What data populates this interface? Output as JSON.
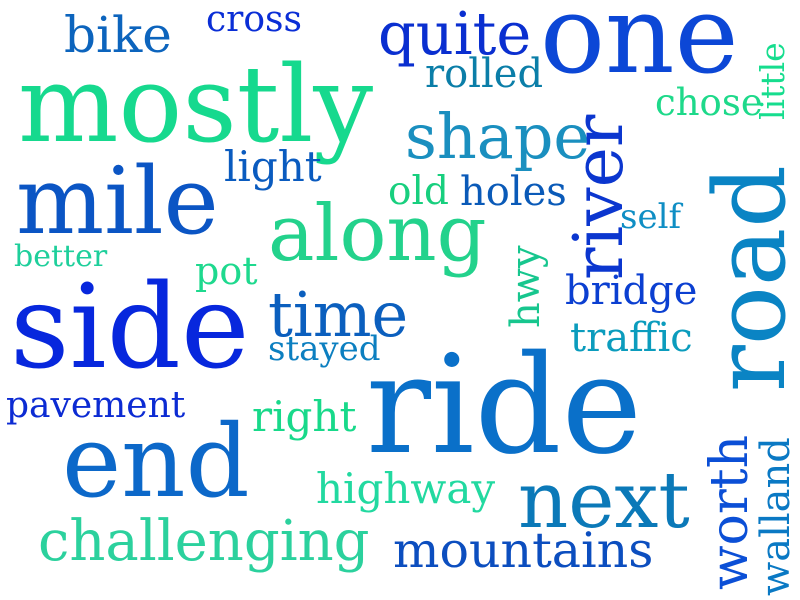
{
  "words": [
    {
      "id": "ride",
      "text": "ride",
      "color": "#0a70c9",
      "rotated": false
    },
    {
      "id": "one",
      "text": "one",
      "color": "#0c47d6",
      "rotated": false
    },
    {
      "id": "side",
      "text": "side",
      "color": "#0727dd",
      "rotated": false
    },
    {
      "id": "mostly",
      "text": "mostly",
      "color": "#16d98e",
      "rotated": false
    },
    {
      "id": "road",
      "text": "road",
      "color": "#0a84c4",
      "rotated": true
    },
    {
      "id": "mile",
      "text": "mile",
      "color": "#0b55c4",
      "rotated": false
    },
    {
      "id": "along",
      "text": "along",
      "color": "#23d28c",
      "rotated": false
    },
    {
      "id": "end",
      "text": "end",
      "color": "#0c68c9",
      "rotated": false
    },
    {
      "id": "river",
      "text": "river",
      "color": "#0b36cf",
      "rotated": true
    },
    {
      "id": "next",
      "text": "next",
      "color": "#0b79b8",
      "rotated": false
    },
    {
      "id": "shape",
      "text": "shape",
      "color": "#1a8fbf",
      "rotated": false
    },
    {
      "id": "time",
      "text": "time",
      "color": "#0b5fbe",
      "rotated": false
    },
    {
      "id": "challenging",
      "text": "challenging",
      "color": "#2bd19d",
      "rotated": false
    },
    {
      "id": "mountains",
      "text": "mountains",
      "color": "#0c4ebf",
      "rotated": false
    },
    {
      "id": "worth",
      "text": "worth",
      "color": "#0b4fd6",
      "rotated": true
    },
    {
      "id": "quite",
      "text": "quite",
      "color": "#0a2fd0",
      "rotated": false
    },
    {
      "id": "bike",
      "text": "bike",
      "color": "#0c64bd",
      "rotated": false
    },
    {
      "id": "pavement",
      "text": "pavement",
      "color": "#0c2bd3",
      "rotated": false
    },
    {
      "id": "highway",
      "text": "highway",
      "color": "#22d9a0",
      "rotated": false
    },
    {
      "id": "bridge",
      "text": "bridge",
      "color": "#0b3fd1",
      "rotated": false
    },
    {
      "id": "traffic",
      "text": "traffic",
      "color": "#0b9cbd",
      "rotated": false
    },
    {
      "id": "walland",
      "text": "walland",
      "color": "#0a79c4",
      "rotated": true
    },
    {
      "id": "light",
      "text": "light",
      "color": "#0a5bbf",
      "rotated": false
    },
    {
      "id": "rolled",
      "text": "rolled",
      "color": "#0b7ea8",
      "rotated": false
    },
    {
      "id": "chose",
      "text": "chose",
      "color": "#1ed98a",
      "rotated": false
    },
    {
      "id": "holes",
      "text": "holes",
      "color": "#0a5ab8",
      "rotated": false
    },
    {
      "id": "old",
      "text": "old",
      "color": "#18cf7e",
      "rotated": false
    },
    {
      "id": "right",
      "text": "right",
      "color": "#18d98a",
      "rotated": false
    },
    {
      "id": "stayed",
      "text": "stayed",
      "color": "#0c7fc0",
      "rotated": false
    },
    {
      "id": "pot",
      "text": "pot",
      "color": "#1ed98e",
      "rotated": false
    },
    {
      "id": "cross",
      "text": "cross",
      "color": "#0a2ed6",
      "rotated": false
    },
    {
      "id": "hwy",
      "text": "hwy",
      "color": "#17c68e",
      "rotated": true
    },
    {
      "id": "little",
      "text": "little",
      "color": "#16dd8e",
      "rotated": true
    },
    {
      "id": "self",
      "text": "self",
      "color": "#0f8ec4",
      "rotated": false
    },
    {
      "id": "better",
      "text": "better",
      "color": "#1ecf9b",
      "rotated": false
    }
  ]
}
